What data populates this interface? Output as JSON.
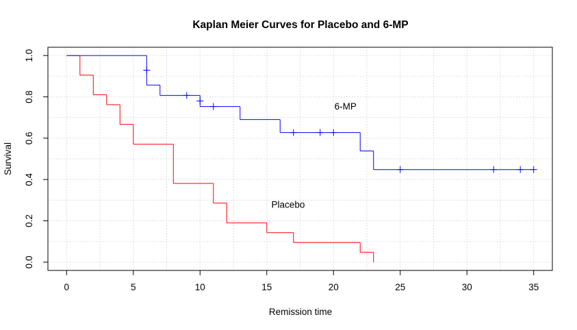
{
  "chart_data": {
    "type": "line",
    "subtype": "kaplan-meier step curves",
    "title": "Kaplan Meier Curves for Placebo and 6-MP",
    "xlabel": "Remission time",
    "ylabel": "Survival",
    "xlim": [
      -1.4,
      36.4
    ],
    "ylim": [
      -0.04,
      1.04
    ],
    "x_ticks": [
      0,
      5,
      10,
      15,
      20,
      25,
      30,
      35
    ],
    "y_ticks": [
      0.0,
      0.2,
      0.4,
      0.6,
      0.8,
      1.0
    ],
    "x_tick_labels": [
      "0",
      "5",
      "10",
      "15",
      "20",
      "25",
      "30",
      "35"
    ],
    "y_tick_labels": [
      "0.0",
      "0.2",
      "0.4",
      "0.6",
      "0.8",
      "1.0"
    ],
    "grid": true,
    "series": [
      {
        "color": "#ff0000",
        "steps": [
          [
            0,
            1.0
          ],
          [
            1,
            0.905
          ],
          [
            2,
            0.81
          ],
          [
            3,
            0.762
          ],
          [
            4,
            0.667
          ],
          [
            5,
            0.571
          ],
          [
            8,
            0.381
          ],
          [
            11,
            0.286
          ],
          [
            12,
            0.19
          ],
          [
            15,
            0.143
          ],
          [
            17,
            0.095
          ],
          [
            22,
            0.048
          ],
          [
            23,
            0.0
          ]
        ],
        "censored": []
      },
      {
        "color": "#0000ff",
        "steps": [
          [
            0,
            1.0
          ],
          [
            6,
            0.857
          ],
          [
            7,
            0.807
          ],
          [
            10,
            0.753
          ],
          [
            13,
            0.69
          ],
          [
            16,
            0.627
          ],
          [
            22,
            0.538
          ],
          [
            23,
            0.448
          ],
          [
            35,
            0.448
          ]
        ],
        "censored": [
          [
            6,
            0.929
          ],
          [
            9,
            0.807
          ],
          [
            10,
            0.78
          ],
          [
            11,
            0.753
          ],
          [
            17,
            0.627
          ],
          [
            19,
            0.627
          ],
          [
            20,
            0.627
          ],
          [
            25,
            0.448
          ],
          [
            32,
            0.448
          ],
          [
            34,
            0.448
          ],
          [
            35,
            0.448
          ]
        ]
      }
    ],
    "annotations": [
      {
        "text": "6-MP",
        "x": 20.9,
        "y": 0.755
      },
      {
        "text": "Placebo",
        "x": 16.6,
        "y": 0.28
      }
    ]
  }
}
